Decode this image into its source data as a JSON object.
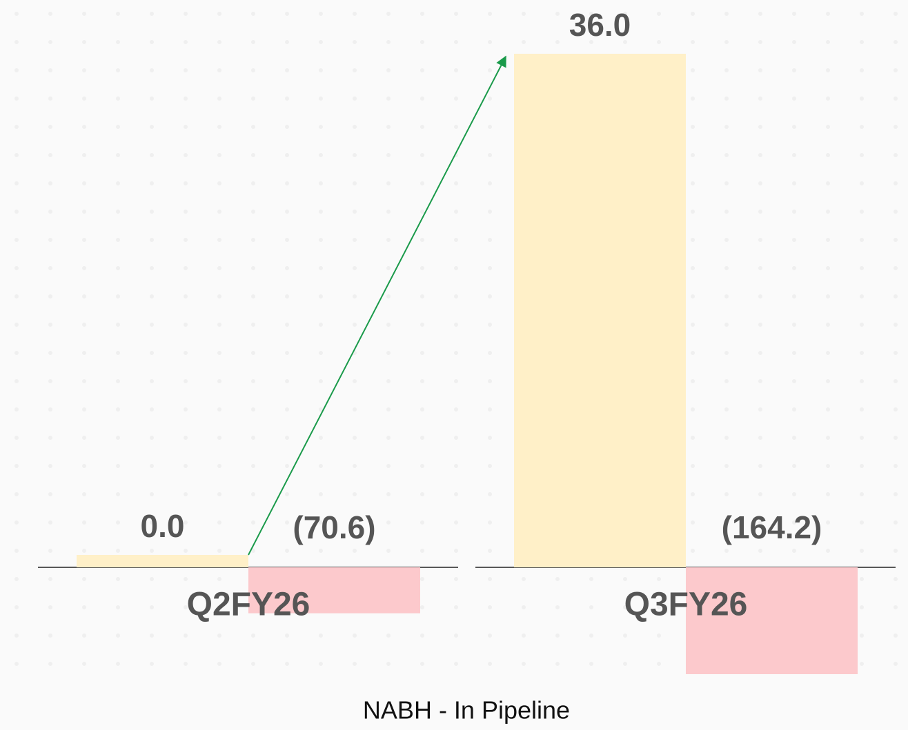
{
  "chart_data": {
    "type": "bar",
    "title": "NABH - In Pipeline",
    "categories": [
      "Q2FY26",
      "Q3FY26"
    ],
    "series": [
      {
        "color": "#fff0c8",
        "values": [
          0.0,
          36.0
        ],
        "value_labels": [
          "0.0",
          "36.0"
        ]
      },
      {
        "color": "#fcc9cc",
        "values": [
          -70.6,
          -164.2
        ],
        "value_labels": [
          "(70.6)",
          "(164.2)"
        ]
      }
    ],
    "arrow_color": "#1a9a4a"
  }
}
